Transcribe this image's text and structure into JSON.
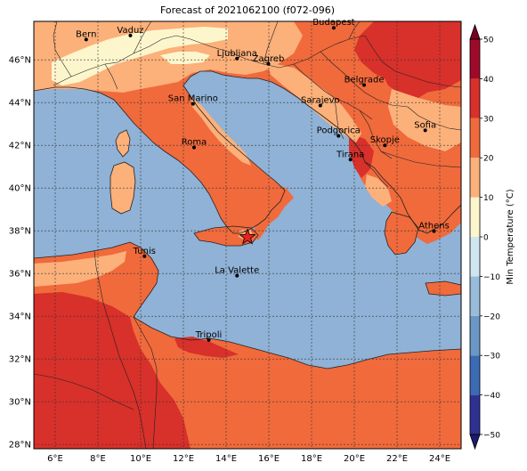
{
  "title": "Forecast of 2021062100 (f072-096)",
  "map": {
    "lon_range": [
      5,
      25
    ],
    "lat_range": [
      27.8,
      47.8
    ],
    "lon_ticks": [
      {
        "value": 6,
        "label": "6°E"
      },
      {
        "value": 8,
        "label": "8°E"
      },
      {
        "value": 10,
        "label": "10°E"
      },
      {
        "value": 12,
        "label": "12°E"
      },
      {
        "value": 14,
        "label": "14°E"
      },
      {
        "value": 16,
        "label": "16°E"
      },
      {
        "value": 18,
        "label": "18°E"
      },
      {
        "value": 20,
        "label": "20°E"
      },
      {
        "value": 22,
        "label": "22°E"
      },
      {
        "value": 24,
        "label": "24°E"
      }
    ],
    "lat_ticks": [
      {
        "value": 28,
        "label": "28°N"
      },
      {
        "value": 30,
        "label": "30°N"
      },
      {
        "value": 32,
        "label": "32°N"
      },
      {
        "value": 34,
        "label": "34°N"
      },
      {
        "value": 36,
        "label": "36°N"
      },
      {
        "value": 38,
        "label": "38°N"
      },
      {
        "value": 40,
        "label": "40°N"
      },
      {
        "value": 42,
        "label": "42°N"
      },
      {
        "value": 44,
        "label": "44°N"
      },
      {
        "value": 46,
        "label": "46°N"
      }
    ],
    "cities": [
      {
        "name": "Bern",
        "lon": 7.45,
        "lat": 46.95
      },
      {
        "name": "Vaduz",
        "lon": 9.52,
        "lat": 47.14
      },
      {
        "name": "Budapest",
        "lon": 19.04,
        "lat": 47.5
      },
      {
        "name": "Ljubljana",
        "lon": 14.51,
        "lat": 46.06
      },
      {
        "name": "Zagreb",
        "lon": 15.98,
        "lat": 45.81
      },
      {
        "name": "Belgrade",
        "lon": 20.46,
        "lat": 44.82
      },
      {
        "name": "San Marino",
        "lon": 12.45,
        "lat": 43.94
      },
      {
        "name": "Sarajevo",
        "lon": 18.41,
        "lat": 43.86
      },
      {
        "name": "Sofia",
        "lon": 23.32,
        "lat": 42.7
      },
      {
        "name": "Podgorica",
        "lon": 19.26,
        "lat": 42.44
      },
      {
        "name": "Skopje",
        "lon": 21.43,
        "lat": 42.0
      },
      {
        "name": "Roma",
        "lon": 12.5,
        "lat": 41.9
      },
      {
        "name": "Tirana",
        "lon": 19.82,
        "lat": 41.33
      },
      {
        "name": "Athens",
        "lon": 23.73,
        "lat": 37.98
      },
      {
        "name": "Tunis",
        "lon": 10.18,
        "lat": 36.81
      },
      {
        "name": "La Valette",
        "lon": 14.51,
        "lat": 35.9
      },
      {
        "name": "Tripoli",
        "lon": 13.19,
        "lat": 32.89
      }
    ],
    "star_marker": {
      "lon": 15.0,
      "lat": 37.7,
      "color": "#e8221e"
    },
    "sea_color": "#8fb2d6"
  },
  "colorbar": {
    "label": "Min Temperature (°C)",
    "bins": [
      {
        "from": -50,
        "to": -40,
        "color": "#2e3192"
      },
      {
        "from": -40,
        "to": -30,
        "color": "#3b6bb3"
      },
      {
        "from": -30,
        "to": -20,
        "color": "#6a97c6"
      },
      {
        "from": -20,
        "to": -10,
        "color": "#98bcda"
      },
      {
        "from": -10,
        "to": 0,
        "color": "#cfe5ef"
      },
      {
        "from": 0,
        "to": 10,
        "color": "#fdf6cc"
      },
      {
        "from": 10,
        "to": 20,
        "color": "#fcb07a"
      },
      {
        "from": 20,
        "to": 30,
        "color": "#f06a3c"
      },
      {
        "from": 30,
        "to": 40,
        "color": "#d8302a"
      },
      {
        "from": 40,
        "to": 50,
        "color": "#a00a2a"
      }
    ],
    "under_color": "#1b1a6e",
    "over_color": "#7a0020",
    "ticks": [
      {
        "value": 50,
        "label": "50"
      },
      {
        "value": 40,
        "label": "40"
      },
      {
        "value": 30,
        "label": "30"
      },
      {
        "value": 20,
        "label": "20"
      },
      {
        "value": 10,
        "label": "10"
      },
      {
        "value": 0,
        "label": "0"
      },
      {
        "value": -10,
        "label": "−10"
      },
      {
        "value": -20,
        "label": "−20"
      },
      {
        "value": -30,
        "label": "−30"
      },
      {
        "value": -40,
        "label": "−40"
      },
      {
        "value": -50,
        "label": "−50"
      }
    ]
  }
}
